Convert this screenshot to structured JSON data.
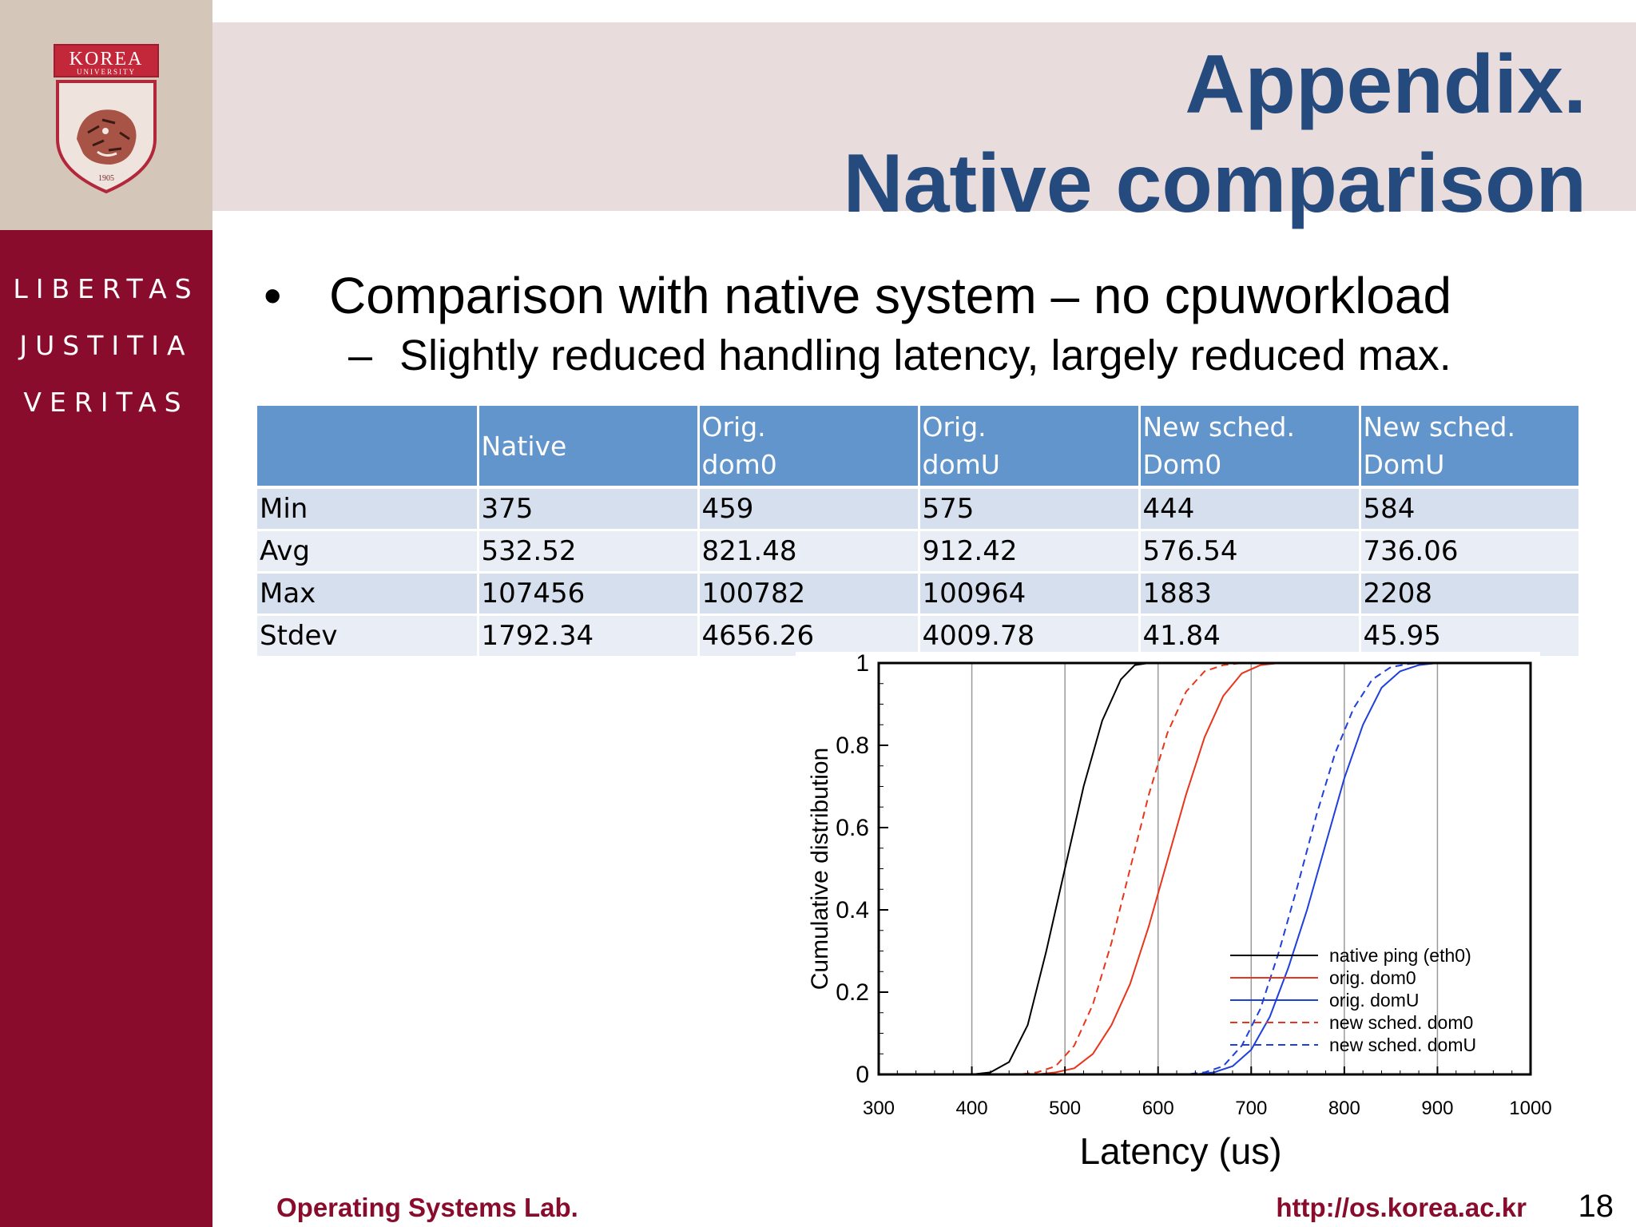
{
  "logo": {
    "name": "KOREA",
    "subname": "UNIVERSITY",
    "year": "1905"
  },
  "motto": [
    "LIBERTAS",
    "JUSTITIA",
    "VERITAS"
  ],
  "title": {
    "line1": "Appendix.",
    "line2": "Native comparison"
  },
  "bullets": {
    "bullet_symbol": "•",
    "main": "Comparison with native system – no cpuworkload",
    "dash": "–",
    "sub": "Slightly reduced handling latency, largely reduced max."
  },
  "table": {
    "headers": [
      [
        "",
        ""
      ],
      [
        "Native",
        ""
      ],
      [
        "Orig.",
        "dom0"
      ],
      [
        "Orig.",
        "domU"
      ],
      [
        "New sched.",
        "Dom0"
      ],
      [
        "New sched.",
        "DomU"
      ]
    ],
    "rows": [
      [
        "Min",
        "375",
        "459",
        "575",
        "444",
        "584"
      ],
      [
        "Avg",
        "532.52",
        "821.48",
        "912.42",
        "576.54",
        "736.06"
      ],
      [
        "Max",
        "107456",
        "100782",
        "100964",
        "1883",
        "2208"
      ],
      [
        "Stdev",
        "1792.34",
        "4656.26",
        "4009.78",
        "41.84",
        "45.95"
      ]
    ]
  },
  "chart_data": {
    "type": "line",
    "xlabel": "Latency (us)",
    "ylabel": "Cumulative distribution",
    "xlim": [
      300,
      1000
    ],
    "ylim": [
      0,
      1
    ],
    "x_ticks": [
      "300",
      "400",
      "500",
      "600",
      "700",
      "800",
      "900",
      "1000"
    ],
    "y_ticks": [
      "0",
      "0.2",
      "0.4",
      "0.6",
      "0.8",
      "1"
    ],
    "grid": "vertical",
    "legend_position": "bottom-right",
    "series": [
      {
        "name": "native ping (eth0)",
        "color": "#000000",
        "dash": "solid",
        "x": [
          300,
          400,
          420,
          440,
          460,
          480,
          500,
          520,
          540,
          560,
          575,
          590,
          1000
        ],
        "y": [
          0,
          0,
          0.005,
          0.03,
          0.12,
          0.3,
          0.5,
          0.7,
          0.86,
          0.96,
          0.995,
          1,
          1
        ]
      },
      {
        "name": "orig. dom0",
        "color": "#e8351b",
        "dash": "solid",
        "x": [
          300,
          470,
          490,
          510,
          530,
          550,
          570,
          590,
          610,
          630,
          650,
          670,
          690,
          710,
          730,
          1000
        ],
        "y": [
          0,
          0,
          0.005,
          0.015,
          0.05,
          0.12,
          0.22,
          0.36,
          0.52,
          0.68,
          0.82,
          0.92,
          0.975,
          0.995,
          1,
          1
        ]
      },
      {
        "name": "orig. domU",
        "color": "#1e3fdc",
        "dash": "solid",
        "x": [
          300,
          640,
          660,
          680,
          700,
          720,
          740,
          760,
          780,
          800,
          820,
          840,
          860,
          880,
          900,
          1000
        ],
        "y": [
          0,
          0,
          0.005,
          0.02,
          0.06,
          0.14,
          0.26,
          0.4,
          0.56,
          0.72,
          0.85,
          0.94,
          0.98,
          0.995,
          1,
          1
        ]
      },
      {
        "name": "new sched. dom0",
        "color": "#e8351b",
        "dash": "dashed",
        "x": [
          300,
          450,
          470,
          490,
          510,
          530,
          550,
          570,
          590,
          610,
          630,
          650,
          670,
          690,
          1000
        ],
        "y": [
          0,
          0,
          0.005,
          0.02,
          0.07,
          0.17,
          0.32,
          0.5,
          0.68,
          0.83,
          0.93,
          0.98,
          0.995,
          1,
          1
        ]
      },
      {
        "name": "new sched. domU",
        "color": "#1e3fdc",
        "dash": "dashed",
        "x": [
          300,
          630,
          650,
          670,
          690,
          710,
          730,
          750,
          770,
          790,
          810,
          830,
          850,
          870,
          890,
          1000
        ],
        "y": [
          0,
          0,
          0.005,
          0.02,
          0.07,
          0.16,
          0.3,
          0.46,
          0.63,
          0.78,
          0.89,
          0.96,
          0.99,
          0.998,
          1,
          1
        ]
      }
    ]
  },
  "footer": {
    "left": "Operating Systems Lab.",
    "right": "http://os.korea.ac.kr",
    "page": "18"
  },
  "colors": {
    "title": "#254a7d",
    "accent": "#8a0c2c",
    "table_header": "#6195cc"
  }
}
